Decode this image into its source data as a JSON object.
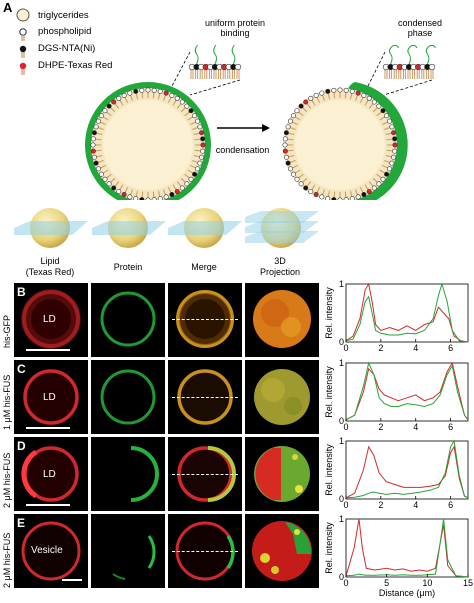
{
  "panelA": {
    "letter": "A",
    "legend": [
      {
        "label": "triglycerides",
        "icon": "triglyceride-icon"
      },
      {
        "label": "phospholipid",
        "icon": "phospholipid-icon"
      },
      {
        "label": "DGS-NTA(Ni)",
        "icon": "dgs-nta-icon"
      },
      {
        "label": "DHPE-Texas Red",
        "icon": "dhpe-texas-red-icon"
      }
    ],
    "left_caption_1": "uniform protein",
    "left_caption_2": "binding",
    "right_caption_1": "condensed",
    "right_caption_2": "phase",
    "arrow_label": "condensation"
  },
  "columns": {
    "lipid_1": "Lipid",
    "lipid_2": "(Texas Red)",
    "protein": "Protein",
    "merge": "Merge",
    "proj_1": "3D",
    "proj_2": "Projection"
  },
  "rows": [
    {
      "letter": "B",
      "label": "his-GFP",
      "object": "LD"
    },
    {
      "letter": "C",
      "label": "1 μM his-FUS",
      "object": "LD"
    },
    {
      "letter": "D",
      "label": "2 μM his-FUS",
      "object": "LD"
    },
    {
      "letter": "E",
      "label": "2 μM his-FUS",
      "object": "Vesicle"
    }
  ],
  "colors": {
    "lipid": "#e0202a",
    "protein": "#22b33a",
    "merge": "#d59a1a",
    "membrane_green": "#22a83a",
    "ld_fill": "#fbf1d2"
  },
  "chart_data": [
    {
      "type": "line",
      "ylabel": "Rel. intensity",
      "xlabel": "",
      "xlim": [
        0,
        7
      ],
      "ylim": [
        0,
        1
      ],
      "xticks": [
        "0",
        "2",
        "4",
        "6"
      ],
      "yticks": [
        "0",
        "1"
      ],
      "series": [
        {
          "color": "#d42a2a",
          "x": [
            0,
            0.4,
            0.8,
            1.1,
            1.3,
            1.5,
            1.7,
            2.0,
            2.5,
            3.0,
            3.5,
            4.0,
            4.5,
            5.0,
            5.3,
            5.6,
            5.9,
            6.2,
            6.6,
            7.0
          ],
          "y": [
            0.02,
            0.1,
            0.4,
            0.9,
            1.0,
            0.7,
            0.3,
            0.2,
            0.25,
            0.2,
            0.28,
            0.2,
            0.3,
            0.35,
            0.6,
            0.5,
            0.4,
            0.1,
            0.02,
            0.0
          ]
        },
        {
          "color": "#28a43a",
          "x": [
            0,
            0.4,
            0.8,
            1.1,
            1.3,
            1.5,
            1.7,
            2.0,
            2.5,
            3.0,
            3.5,
            4.0,
            4.5,
            5.0,
            5.3,
            5.5,
            5.8,
            6.1,
            6.5,
            7.0
          ],
          "y": [
            0.02,
            0.05,
            0.3,
            0.7,
            0.78,
            0.5,
            0.2,
            0.15,
            0.12,
            0.12,
            0.15,
            0.14,
            0.2,
            0.4,
            0.8,
            1.0,
            0.7,
            0.2,
            0.02,
            0.0
          ]
        }
      ]
    },
    {
      "type": "line",
      "ylabel": "Rel. intensity",
      "xlabel": "",
      "xlim": [
        0,
        7
      ],
      "ylim": [
        0,
        1
      ],
      "xticks": [
        "0",
        "2",
        "4",
        "6"
      ],
      "yticks": [
        "0",
        "1"
      ],
      "series": [
        {
          "color": "#d42a2a",
          "x": [
            0,
            0.5,
            1.0,
            1.3,
            1.6,
            1.9,
            2.2,
            2.6,
            3.0,
            3.5,
            4.0,
            4.5,
            5.0,
            5.4,
            5.8,
            6.1,
            6.4,
            6.8,
            7.0
          ],
          "y": [
            0.02,
            0.1,
            0.5,
            0.9,
            0.8,
            0.55,
            0.45,
            0.4,
            0.35,
            0.4,
            0.45,
            0.35,
            0.4,
            0.5,
            0.85,
            1.0,
            0.6,
            0.1,
            0.02
          ]
        },
        {
          "color": "#28a43a",
          "x": [
            0,
            0.5,
            1.0,
            1.3,
            1.6,
            1.9,
            2.2,
            2.6,
            3.0,
            3.5,
            4.0,
            4.5,
            5.0,
            5.4,
            5.8,
            6.1,
            6.4,
            6.8,
            7.0
          ],
          "y": [
            0.02,
            0.1,
            0.6,
            1.0,
            0.8,
            0.4,
            0.3,
            0.25,
            0.25,
            0.3,
            0.28,
            0.25,
            0.3,
            0.45,
            0.8,
            0.95,
            0.5,
            0.1,
            0.02
          ]
        }
      ]
    },
    {
      "type": "line",
      "ylabel": "Rel. intensity",
      "xlabel": "",
      "xlim": [
        0,
        7
      ],
      "ylim": [
        0,
        1
      ],
      "xticks": [
        "0",
        "2",
        "4",
        "6"
      ],
      "yticks": [
        "0",
        "1"
      ],
      "series": [
        {
          "color": "#d42a2a",
          "x": [
            0,
            0.5,
            1.0,
            1.3,
            1.6,
            1.9,
            2.3,
            2.8,
            3.3,
            3.8,
            4.3,
            4.8,
            5.3,
            5.7,
            6.0,
            6.2,
            6.5,
            6.8,
            7.0
          ],
          "y": [
            0.02,
            0.1,
            0.5,
            0.9,
            0.75,
            0.45,
            0.3,
            0.25,
            0.2,
            0.2,
            0.2,
            0.22,
            0.25,
            0.4,
            0.8,
            0.9,
            0.35,
            0.05,
            0.02
          ]
        },
        {
          "color": "#28a43a",
          "x": [
            0,
            0.5,
            1.0,
            1.3,
            1.6,
            1.9,
            2.3,
            2.8,
            3.3,
            3.8,
            4.3,
            4.8,
            5.3,
            5.7,
            6.0,
            6.2,
            6.5,
            6.8,
            7.0
          ],
          "y": [
            0.02,
            0.03,
            0.06,
            0.1,
            0.12,
            0.1,
            0.08,
            0.1,
            0.08,
            0.1,
            0.12,
            0.15,
            0.2,
            0.45,
            0.9,
            1.0,
            0.4,
            0.05,
            0.02
          ]
        }
      ]
    },
    {
      "type": "line",
      "ylabel": "Rel. intensity",
      "xlabel": "Distance (μm)",
      "xlim": [
        0,
        15
      ],
      "ylim": [
        0,
        1
      ],
      "xticks": [
        "0",
        "5",
        "10",
        "15"
      ],
      "yticks": [
        "0",
        "1"
      ],
      "series": [
        {
          "color": "#d42a2a",
          "x": [
            0,
            1.0,
            1.6,
            2.0,
            2.5,
            3.5,
            5,
            6,
            7,
            8,
            9,
            10,
            11,
            11.6,
            12.0,
            12.5,
            13.5,
            15
          ],
          "y": [
            0.02,
            0.5,
            1.0,
            0.5,
            0.15,
            0.12,
            0.15,
            0.12,
            0.14,
            0.1,
            0.12,
            0.1,
            0.15,
            0.6,
            0.9,
            0.2,
            0.02,
            0.0
          ]
        },
        {
          "color": "#28a43a",
          "x": [
            0,
            1.0,
            1.6,
            2.0,
            2.5,
            3.5,
            5,
            6,
            7,
            8,
            9,
            10,
            11,
            11.6,
            12.0,
            12.5,
            13.5,
            15
          ],
          "y": [
            0.02,
            0.03,
            0.05,
            0.04,
            0.03,
            0.03,
            0.04,
            0.03,
            0.04,
            0.03,
            0.03,
            0.04,
            0.05,
            0.6,
            1.0,
            0.3,
            0.02,
            0.0
          ]
        }
      ]
    }
  ]
}
